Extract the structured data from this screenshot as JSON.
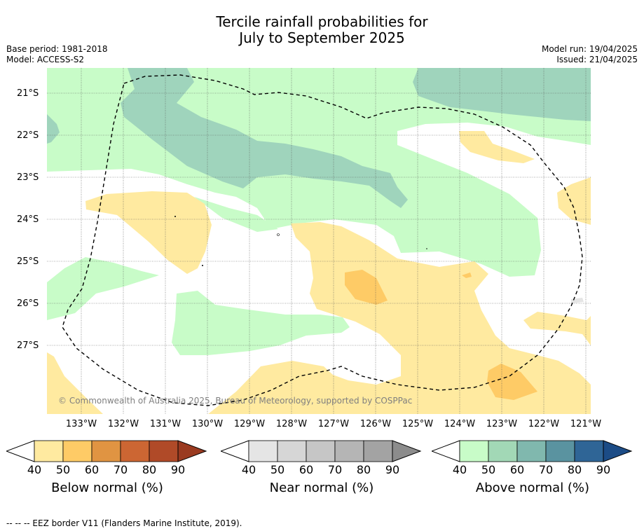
{
  "title_line1": "Tercile rainfall probabilities for",
  "title_line2": "July to September 2025",
  "base_period": "Base period: 1981-2018",
  "model": "Model: ACCESS-S2",
  "model_run": "Model run: 19/04/2025",
  "issued": "Issued: 21/04/2025",
  "lat_labels": [
    "21°S",
    "22°S",
    "23°S",
    "24°S",
    "25°S",
    "26°S",
    "27°S"
  ],
  "lon_labels": [
    "133°W",
    "132°W",
    "131°W",
    "130°W",
    "129°W",
    "128°W",
    "127°W",
    "126°W",
    "125°W",
    "124°W",
    "123°W",
    "122°W",
    "121°W"
  ],
  "copyright": "© Commonwealth of Australia 2025, Bureau of Meteorology, supported by COSPPac",
  "colorbars": [
    {
      "label": "Below normal (%)",
      "ticks": [
        "40",
        "50",
        "60",
        "70",
        "80",
        "90"
      ],
      "colors": [
        "#ffeaa0",
        "#fecb66",
        "#e09442",
        "#cc6633",
        "#b04a28",
        "#9a3a20"
      ]
    },
    {
      "label": "Near normal (%)",
      "ticks": [
        "40",
        "50",
        "60",
        "70",
        "80",
        "90"
      ],
      "colors": [
        "#e5e5e5",
        "#d6d6d6",
        "#c6c6c6",
        "#b5b5b5",
        "#a3a3a3",
        "#8c8c8c"
      ]
    },
    {
      "label": "Above normal (%)",
      "ticks": [
        "40",
        "50",
        "60",
        "70",
        "80",
        "90"
      ],
      "colors": [
        "#c8fcc8",
        "#a2d8b6",
        "#80b8ae",
        "#5a93a0",
        "#2f6596",
        "#1c4c86"
      ]
    }
  ],
  "footer": "--  --  -- EEZ border V11 (Flanders Marine Institute, 2019)."
}
